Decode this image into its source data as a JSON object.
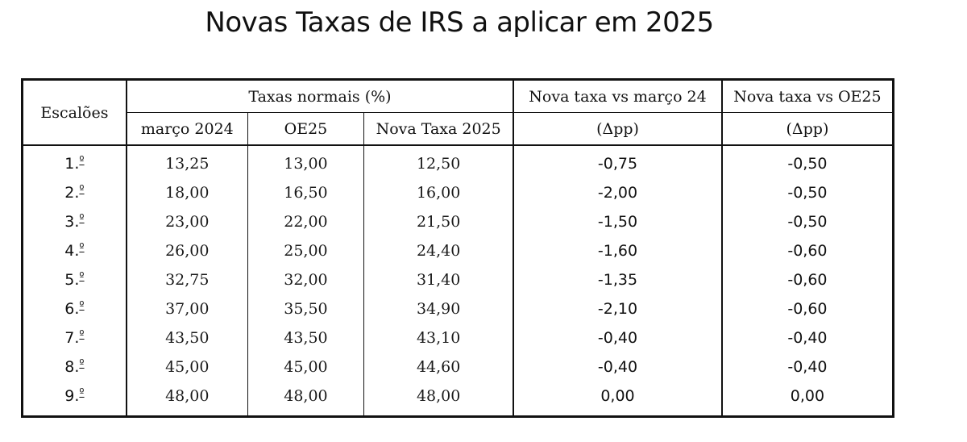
{
  "title": "Novas Taxas de IRS a aplicar em 2025",
  "table": {
    "escaloes_header": "Escalões",
    "group_header": "Taxas normais (%)",
    "col_marco2024": "março 2024",
    "col_oe25": "OE25",
    "col_nova": "Nova Taxa 2025",
    "col_vs_marco_top": "Nova taxa vs março 24",
    "col_vs_marco_unit": "(Δpp)",
    "col_vs_oe25_top": "Nova taxa vs OE25",
    "col_vs_oe25_unit": "(Δpp)",
    "rows": [
      {
        "escalao": "1.",
        "ord": "º",
        "marco2024": "13,25",
        "oe25": "13,00",
        "nova": "12,50",
        "vs_marco": "-0,75",
        "vs_oe25": "-0,50"
      },
      {
        "escalao": "2.",
        "ord": "º",
        "marco2024": "18,00",
        "oe25": "16,50",
        "nova": "16,00",
        "vs_marco": "-2,00",
        "vs_oe25": "-0,50"
      },
      {
        "escalao": "3.",
        "ord": "º",
        "marco2024": "23,00",
        "oe25": "22,00",
        "nova": "21,50",
        "vs_marco": "-1,50",
        "vs_oe25": "-0,50"
      },
      {
        "escalao": "4.",
        "ord": "º",
        "marco2024": "26,00",
        "oe25": "25,00",
        "nova": "24,40",
        "vs_marco": "-1,60",
        "vs_oe25": "-0,60"
      },
      {
        "escalao": "5.",
        "ord": "º",
        "marco2024": "32,75",
        "oe25": "32,00",
        "nova": "31,40",
        "vs_marco": "-1,35",
        "vs_oe25": "-0,60"
      },
      {
        "escalao": "6.",
        "ord": "º",
        "marco2024": "37,00",
        "oe25": "35,50",
        "nova": "34,90",
        "vs_marco": "-2,10",
        "vs_oe25": "-0,60"
      },
      {
        "escalao": "7.",
        "ord": "º",
        "marco2024": "43,50",
        "oe25": "43,50",
        "nova": "43,10",
        "vs_marco": "-0,40",
        "vs_oe25": "-0,40"
      },
      {
        "escalao": "8.",
        "ord": "º",
        "marco2024": "45,00",
        "oe25": "45,00",
        "nova": "44,60",
        "vs_marco": "-0,40",
        "vs_oe25": "-0,40"
      },
      {
        "escalao": "9.",
        "ord": "º",
        "marco2024": "48,00",
        "oe25": "48,00",
        "nova": "48,00",
        "vs_marco": "0,00",
        "vs_oe25": "0,00"
      }
    ]
  }
}
